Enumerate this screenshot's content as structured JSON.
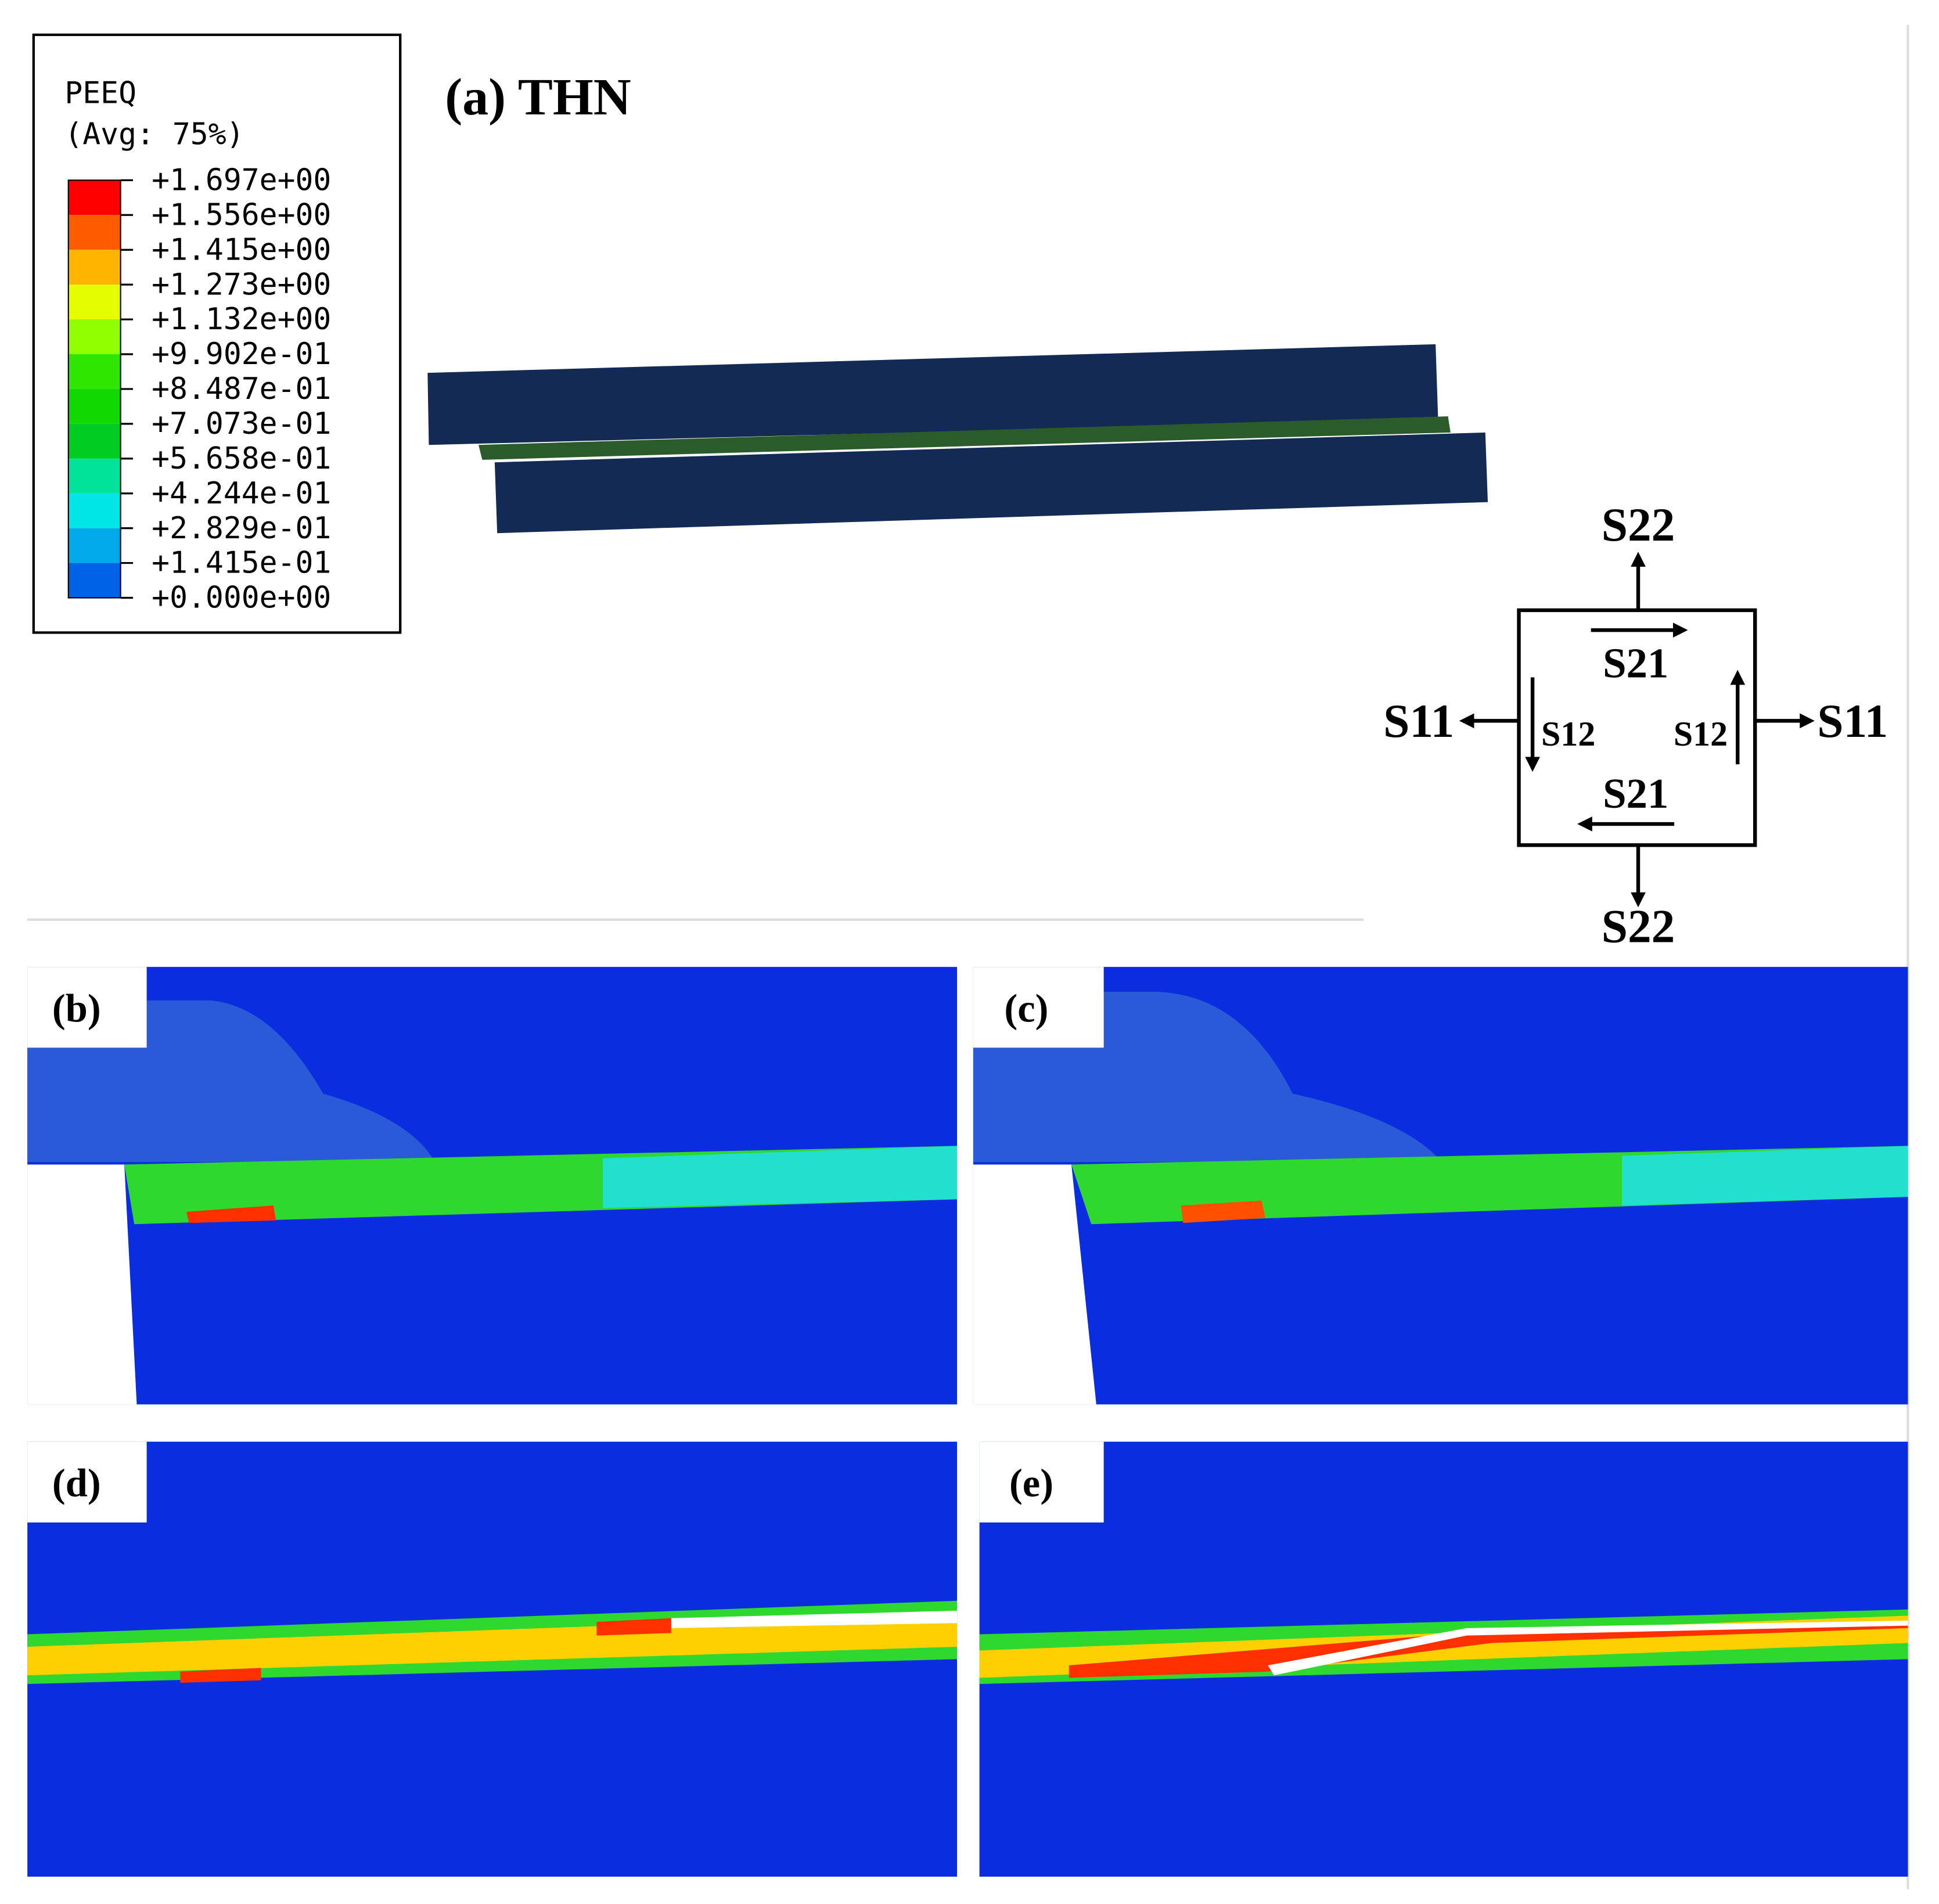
{
  "legend": {
    "title": "PEEQ",
    "subtitle": "(Avg: 75%)",
    "labels": [
      "+1.697e+00",
      "+1.556e+00",
      "+1.415e+00",
      "+1.273e+00",
      "+1.132e+00",
      "+9.902e-01",
      "+8.487e-01",
      "+7.073e-01",
      "+5.658e-01",
      "+4.244e-01",
      "+2.829e-01",
      "+1.415e-01",
      "+0.000e+00"
    ],
    "colors": [
      "#ff0000",
      "#ff5c00",
      "#ffb400",
      "#e6ff00",
      "#8fff00",
      "#2ee600",
      "#10d800",
      "#00cc22",
      "#00e39b",
      "#00e6e6",
      "#00aaea",
      "#0063e6"
    ]
  },
  "panel_labels": [
    "(a) THN",
    "(b)",
    "(c)",
    "(d)",
    "(e)"
  ],
  "stress_diagram": {
    "top": "S22",
    "bottom": "S22",
    "left": "S11",
    "right": "S11",
    "shear_top": "S21",
    "shear_bottom": "S21",
    "shear_left": "S12",
    "shear_right": "S12"
  }
}
